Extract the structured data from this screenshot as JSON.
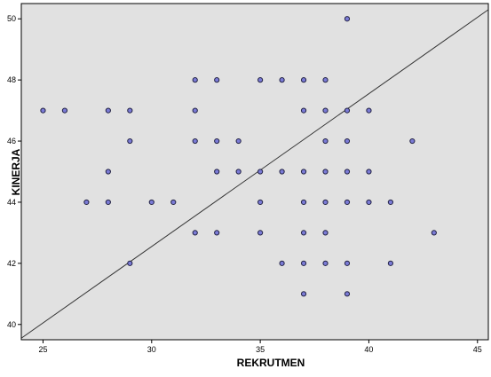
{
  "chart_data": {
    "type": "scatter",
    "title": "",
    "xlabel": "REKRUTMEN",
    "ylabel": "KINERJA",
    "xlim": [
      24,
      45.5
    ],
    "ylim": [
      39.5,
      50.5
    ],
    "x_ticks": [
      25,
      30,
      35,
      40,
      45
    ],
    "y_ticks": [
      40,
      42,
      44,
      46,
      48,
      50
    ],
    "x_tick_labels": [
      "25",
      "30",
      "35",
      "40",
      "45"
    ],
    "y_tick_labels": [
      "40",
      "42",
      "44",
      "46",
      "48",
      "50"
    ],
    "grid": false,
    "point_color": "#7b7bd6",
    "point_edge_color": "#222244",
    "plot_background": "#e1e1e1",
    "reference_line": {
      "from": [
        24,
        39.55
      ],
      "to": [
        45.5,
        50.3
      ]
    },
    "points": [
      [
        25,
        47
      ],
      [
        26,
        47
      ],
      [
        28,
        47
      ],
      [
        29,
        47
      ],
      [
        29,
        46
      ],
      [
        28,
        45
      ],
      [
        27,
        44
      ],
      [
        28,
        44
      ],
      [
        30,
        44
      ],
      [
        31,
        44
      ],
      [
        29,
        42
      ],
      [
        32,
        48
      ],
      [
        33,
        48
      ],
      [
        35,
        48
      ],
      [
        36,
        48
      ],
      [
        37,
        48
      ],
      [
        38,
        48
      ],
      [
        32,
        47
      ],
      [
        37,
        47
      ],
      [
        38,
        47
      ],
      [
        39,
        47
      ],
      [
        40,
        47
      ],
      [
        32,
        46
      ],
      [
        33,
        46
      ],
      [
        34,
        46
      ],
      [
        38,
        46
      ],
      [
        39,
        46
      ],
      [
        42,
        46
      ],
      [
        33,
        45
      ],
      [
        34,
        45
      ],
      [
        35,
        45
      ],
      [
        36,
        45
      ],
      [
        37,
        45
      ],
      [
        38,
        45
      ],
      [
        39,
        45
      ],
      [
        40,
        45
      ],
      [
        35,
        44
      ],
      [
        37,
        44
      ],
      [
        38,
        44
      ],
      [
        39,
        44
      ],
      [
        40,
        44
      ],
      [
        41,
        44
      ],
      [
        32,
        43
      ],
      [
        33,
        43
      ],
      [
        35,
        43
      ],
      [
        37,
        43
      ],
      [
        38,
        43
      ],
      [
        43,
        43
      ],
      [
        36,
        42
      ],
      [
        37,
        42
      ],
      [
        38,
        42
      ],
      [
        39,
        42
      ],
      [
        41,
        42
      ],
      [
        37,
        41
      ],
      [
        39,
        41
      ],
      [
        39,
        50
      ]
    ]
  }
}
